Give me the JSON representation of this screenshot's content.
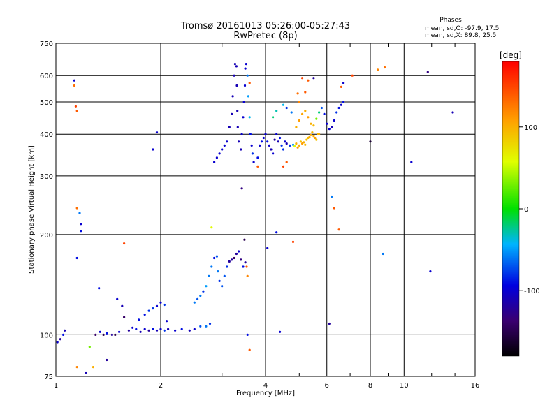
{
  "chart_data": {
    "type": "scatter",
    "title": "Tromsø 20161013 05:26:00-05:27:43",
    "subtitle": "RwPretec (8p)",
    "xlabel": "Frequency [MHz]",
    "ylabel": "Stationary phase Virtual Height [km]",
    "x_scale": "log",
    "y_scale": "log",
    "xlim": [
      1,
      16
    ],
    "ylim": [
      75,
      750
    ],
    "grid": true,
    "x_ticks": [
      1,
      2,
      4,
      6,
      8,
      10,
      16
    ],
    "x_tick_labels": [
      "1",
      "2",
      "4",
      "6",
      "8",
      "10",
      "16"
    ],
    "y_ticks": [
      75,
      100,
      200,
      300,
      400,
      500,
      600,
      750
    ],
    "y_tick_labels": [
      "75",
      "100",
      "200",
      "300",
      "400",
      "500",
      "600",
      "750"
    ],
    "phases_header": "Phases",
    "phase_stats": [
      "mean, sd,O: -97.9, 17.5",
      "mean, sd,X:  89.8, 25.5"
    ],
    "colorbar": {
      "label": "[deg]",
      "range": [
        -180,
        180
      ],
      "ticks": [
        100,
        0,
        -100
      ],
      "tick_labels": [
        "100",
        "0",
        "-100"
      ]
    },
    "points": [
      [
        1.01,
        95,
        -100
      ],
      [
        1.03,
        97,
        -120
      ],
      [
        1.05,
        100,
        -90
      ],
      [
        1.06,
        103,
        -110
      ],
      [
        1.13,
        580,
        -100
      ],
      [
        1.13,
        560,
        130
      ],
      [
        1.14,
        485,
        150
      ],
      [
        1.15,
        470,
        140
      ],
      [
        1.15,
        240,
        130
      ],
      [
        1.17,
        232,
        -60
      ],
      [
        1.18,
        215,
        -100
      ],
      [
        1.18,
        205,
        -90
      ],
      [
        1.15,
        170,
        -90
      ],
      [
        1.15,
        80,
        120
      ],
      [
        1.22,
        77,
        -110
      ],
      [
        1.25,
        92,
        30
      ],
      [
        1.28,
        80,
        100
      ],
      [
        1.3,
        100,
        -140
      ],
      [
        1.34,
        102,
        -100
      ],
      [
        1.37,
        100,
        -150
      ],
      [
        1.4,
        101,
        -90
      ],
      [
        1.45,
        100,
        -120
      ],
      [
        1.48,
        100,
        -150
      ],
      [
        1.52,
        102,
        -100
      ],
      [
        1.33,
        138,
        -90
      ],
      [
        1.4,
        84,
        -120
      ],
      [
        1.5,
        128,
        -100
      ],
      [
        1.55,
        122,
        -110
      ],
      [
        1.57,
        113,
        -140
      ],
      [
        1.62,
        103,
        -120
      ],
      [
        1.66,
        105,
        -100
      ],
      [
        1.7,
        104,
        -90
      ],
      [
        1.75,
        102,
        -110
      ],
      [
        1.8,
        104,
        -100
      ],
      [
        1.85,
        103,
        -120
      ],
      [
        1.9,
        104,
        -90
      ],
      [
        1.95,
        103,
        -110
      ],
      [
        2.0,
        104,
        -100
      ],
      [
        2.05,
        103,
        -80
      ],
      [
        2.1,
        104,
        -110
      ],
      [
        2.2,
        103,
        -100
      ],
      [
        2.3,
        104,
        -90
      ],
      [
        2.42,
        103,
        -110
      ],
      [
        2.5,
        104,
        -100
      ],
      [
        2.6,
        106,
        -70
      ],
      [
        2.7,
        106,
        -60
      ],
      [
        2.77,
        108,
        -80
      ],
      [
        1.57,
        188,
        150
      ],
      [
        1.73,
        111,
        -90
      ],
      [
        1.8,
        115,
        -90
      ],
      [
        1.85,
        118,
        -80
      ],
      [
        1.9,
        120,
        -80
      ],
      [
        1.95,
        122,
        -100
      ],
      [
        2.0,
        125,
        -100
      ],
      [
        2.05,
        123,
        -80
      ],
      [
        2.08,
        110,
        -100
      ],
      [
        2.5,
        125,
        -60
      ],
      [
        2.55,
        128,
        -70
      ],
      [
        2.6,
        131,
        -60
      ],
      [
        2.65,
        135,
        -80
      ],
      [
        2.7,
        140,
        -50
      ],
      [
        2.75,
        150,
        -60
      ],
      [
        2.8,
        160,
        -60
      ],
      [
        2.85,
        170,
        -90
      ],
      [
        2.9,
        172,
        -70
      ],
      [
        2.92,
        155,
        -60
      ],
      [
        2.95,
        145,
        -80
      ],
      [
        3.0,
        140,
        -70
      ],
      [
        3.05,
        150,
        -70
      ],
      [
        3.1,
        160,
        -80
      ],
      [
        3.15,
        166,
        -120
      ],
      [
        3.2,
        168,
        -120
      ],
      [
        3.25,
        170,
        -140
      ],
      [
        3.3,
        175,
        -120
      ],
      [
        3.35,
        178,
        -100
      ],
      [
        3.4,
        168,
        -130
      ],
      [
        3.48,
        193,
        -150
      ],
      [
        3.53,
        160,
        140
      ],
      [
        2.8,
        210,
        60
      ],
      [
        2.85,
        330,
        -100
      ],
      [
        2.9,
        340,
        -100
      ],
      [
        2.95,
        350,
        -100
      ],
      [
        3.0,
        360,
        -100
      ],
      [
        3.05,
        370,
        -100
      ],
      [
        3.1,
        380,
        -100
      ],
      [
        3.15,
        420,
        -110
      ],
      [
        3.2,
        460,
        -110
      ],
      [
        3.22,
        520,
        -110
      ],
      [
        3.25,
        600,
        -110
      ],
      [
        3.27,
        650,
        -110
      ],
      [
        3.3,
        640,
        -110
      ],
      [
        3.31,
        560,
        -110
      ],
      [
        3.32,
        470,
        -110
      ],
      [
        3.33,
        420,
        -110
      ],
      [
        3.35,
        380,
        -110
      ],
      [
        3.4,
        360,
        -110
      ],
      [
        3.42,
        400,
        -100
      ],
      [
        3.45,
        450,
        -100
      ],
      [
        3.47,
        500,
        -100
      ],
      [
        3.49,
        560,
        -100
      ],
      [
        3.5,
        630,
        -100
      ],
      [
        3.52,
        650,
        -100
      ],
      [
        3.55,
        600,
        -60
      ],
      [
        3.57,
        520,
        -50
      ],
      [
        3.6,
        450,
        -40
      ],
      [
        3.62,
        400,
        -90
      ],
      [
        3.65,
        370,
        -100
      ],
      [
        3.67,
        350,
        -80
      ],
      [
        3.7,
        330,
        -100
      ],
      [
        3.45,
        160,
        -90
      ],
      [
        3.5,
        165,
        -120
      ],
      [
        3.55,
        150,
        120
      ],
      [
        3.6,
        90,
        140
      ],
      [
        3.42,
        275,
        -130
      ],
      [
        3.55,
        100,
        -90
      ],
      [
        3.8,
        340,
        -90
      ],
      [
        3.85,
        370,
        -100
      ],
      [
        3.9,
        380,
        -90
      ],
      [
        3.95,
        390,
        -100
      ],
      [
        4.0,
        400,
        -100
      ],
      [
        4.05,
        380,
        -90
      ],
      [
        4.1,
        370,
        -100
      ],
      [
        4.15,
        360,
        -110
      ],
      [
        4.2,
        350,
        -100
      ],
      [
        4.25,
        385,
        -120
      ],
      [
        4.3,
        400,
        -100
      ],
      [
        4.35,
        380,
        -110
      ],
      [
        4.4,
        390,
        -90
      ],
      [
        4.45,
        370,
        -80
      ],
      [
        4.5,
        360,
        -80
      ],
      [
        4.55,
        380,
        -100
      ],
      [
        4.6,
        375,
        -110
      ],
      [
        4.7,
        370,
        -80
      ],
      [
        4.8,
        372,
        -50
      ],
      [
        4.85,
        368,
        60
      ],
      [
        4.9,
        375,
        100
      ],
      [
        4.95,
        365,
        110
      ],
      [
        5.0,
        370,
        100
      ],
      [
        5.05,
        380,
        90
      ],
      [
        5.1,
        375,
        110
      ],
      [
        5.15,
        378,
        100
      ],
      [
        5.2,
        372,
        95
      ],
      [
        5.25,
        385,
        90
      ],
      [
        5.3,
        390,
        95
      ],
      [
        5.35,
        392,
        100
      ],
      [
        5.4,
        398,
        105
      ],
      [
        5.45,
        405,
        95
      ],
      [
        5.5,
        395,
        100
      ],
      [
        5.55,
        390,
        110
      ],
      [
        5.6,
        385,
        90
      ],
      [
        5.65,
        400,
        95
      ],
      [
        5.7,
        400,
        100
      ],
      [
        4.9,
        420,
        100
      ],
      [
        5.0,
        440,
        110
      ],
      [
        5.1,
        460,
        105
      ],
      [
        5.2,
        470,
        100
      ],
      [
        5.3,
        450,
        110
      ],
      [
        5.4,
        430,
        100
      ],
      [
        5.5,
        425,
        95
      ],
      [
        5.6,
        445,
        30
      ],
      [
        5.7,
        465,
        -20
      ],
      [
        5.8,
        480,
        -70
      ],
      [
        5.9,
        460,
        -90
      ],
      [
        6.0,
        430,
        -100
      ],
      [
        6.1,
        415,
        -100
      ],
      [
        6.2,
        420,
        -110
      ],
      [
        6.3,
        440,
        -100
      ],
      [
        6.4,
        465,
        -80
      ],
      [
        6.5,
        480,
        -90
      ],
      [
        6.6,
        490,
        -100
      ],
      [
        6.7,
        500,
        -90
      ],
      [
        4.75,
        465,
        -60
      ],
      [
        4.6,
        480,
        -80
      ],
      [
        4.5,
        490,
        -40
      ],
      [
        4.3,
        470,
        -30
      ],
      [
        4.2,
        450,
        -20
      ],
      [
        4.95,
        530,
        130
      ],
      [
        5.2,
        535,
        140
      ],
      [
        5.3,
        580,
        140
      ],
      [
        5.5,
        590,
        -120
      ],
      [
        5.0,
        500,
        120
      ],
      [
        5.1,
        590,
        150
      ],
      [
        6.6,
        555,
        140
      ],
      [
        6.7,
        570,
        -100
      ],
      [
        7.1,
        600,
        150
      ],
      [
        8.4,
        625,
        120
      ],
      [
        8.8,
        635,
        130
      ],
      [
        11.7,
        615,
        -130
      ],
      [
        13.8,
        465,
        -110
      ],
      [
        8.0,
        380,
        -160
      ],
      [
        10.5,
        330,
        -100
      ],
      [
        8.7,
        175,
        -60
      ],
      [
        11.9,
        155,
        -100
      ],
      [
        6.2,
        260,
        -60
      ],
      [
        6.3,
        240,
        140
      ],
      [
        6.5,
        207,
        140
      ],
      [
        4.4,
        102,
        -100
      ],
      [
        4.3,
        203,
        -90
      ],
      [
        4.05,
        182,
        -100
      ],
      [
        3.8,
        320,
        140
      ],
      [
        4.8,
        190,
        150
      ],
      [
        6.1,
        108,
        -120
      ],
      [
        4.5,
        320,
        150
      ],
      [
        4.6,
        330,
        140
      ],
      [
        1.95,
        405,
        -100
      ],
      [
        1.9,
        360,
        -100
      ],
      [
        3.6,
        570,
        140
      ]
    ]
  }
}
